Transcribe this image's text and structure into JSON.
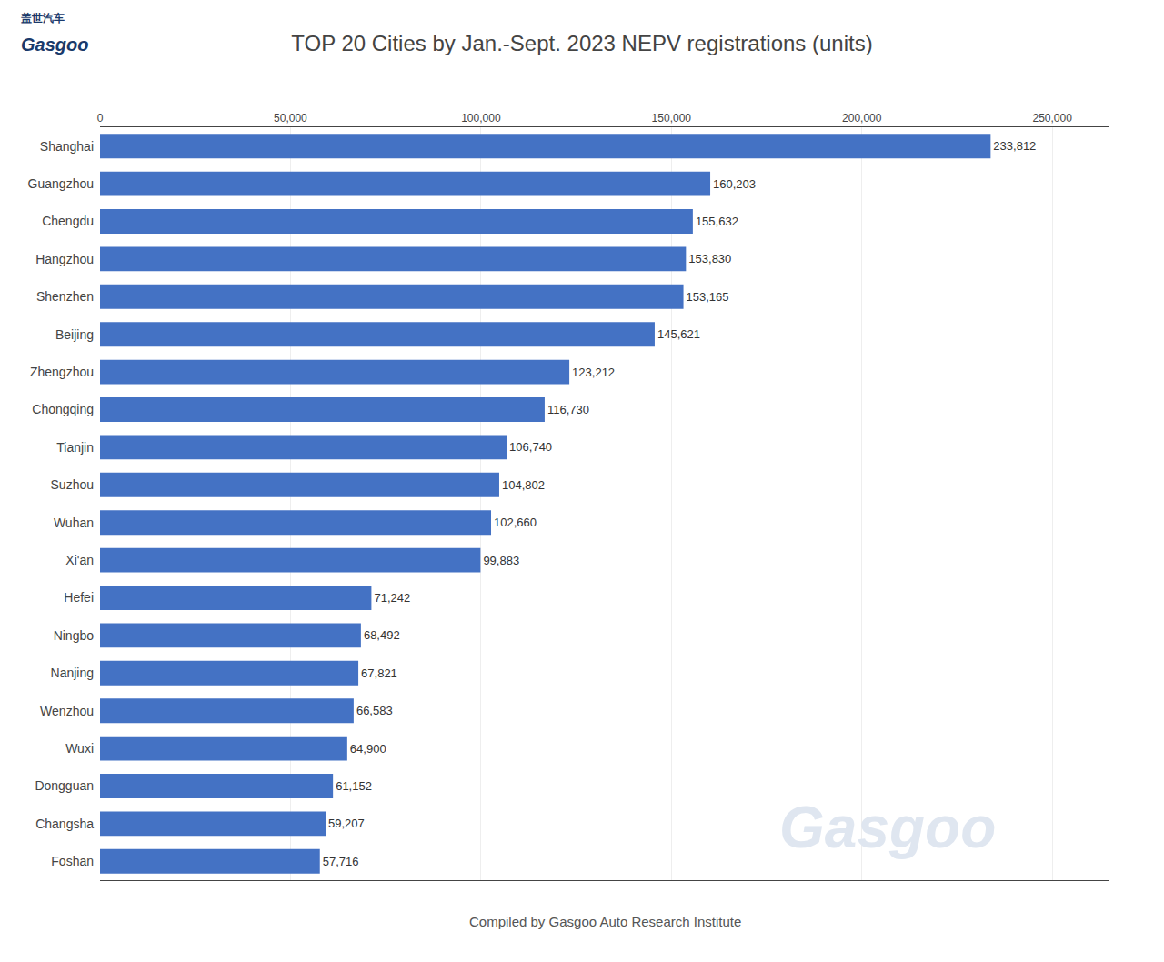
{
  "chart_data": {
    "type": "bar",
    "orientation": "horizontal",
    "title": "TOP 20 Cities by Jan.-Sept. 2023 NEPV registrations (units)",
    "categories": [
      "Shanghai",
      "Guangzhou",
      "Chengdu",
      "Hangzhou",
      "Shenzhen",
      "Beijing",
      "Zhengzhou",
      "Chongqing",
      "Tianjin",
      "Suzhou",
      "Wuhan",
      "Xi'an",
      "Hefei",
      "Ningbo",
      "Nanjing",
      "Wenzhou",
      "Wuxi",
      "Dongguan",
      "Changsha",
      "Foshan"
    ],
    "values": [
      233812,
      160203,
      155632,
      153830,
      153165,
      145621,
      123212,
      116730,
      106740,
      104802,
      102660,
      99883,
      71242,
      68492,
      67821,
      66583,
      64900,
      61152,
      59207,
      57716
    ],
    "value_labels": [
      "233,812",
      "160,203",
      "155,632",
      "153,830",
      "153,165",
      "145,621",
      "123,212",
      "116,730",
      "106,740",
      "104,802",
      "102,660",
      "99,883",
      "71,242",
      "68,492",
      "67,821",
      "66,583",
      "64,900",
      "61,152",
      "59,207",
      "57,716"
    ],
    "data_labels": true,
    "color": "#4472c4",
    "xlim": [
      0,
      265000
    ],
    "xticks": [
      0,
      {
        "value": 50000,
        "label": "50,000"
      },
      {
        "value": 100000,
        "label": "100,000"
      },
      {
        "value": 150000,
        "label": "150,000"
      },
      {
        "value": 200000,
        "label": "200,000"
      },
      {
        "value": 250000,
        "label": "250,000"
      }
    ],
    "grid": true,
    "annotations": [
      "Compiled by Gasgoo Auto Research Institute",
      "Gasgoo",
      "盖世汽车",
      "Gasgoo"
    ]
  }
}
